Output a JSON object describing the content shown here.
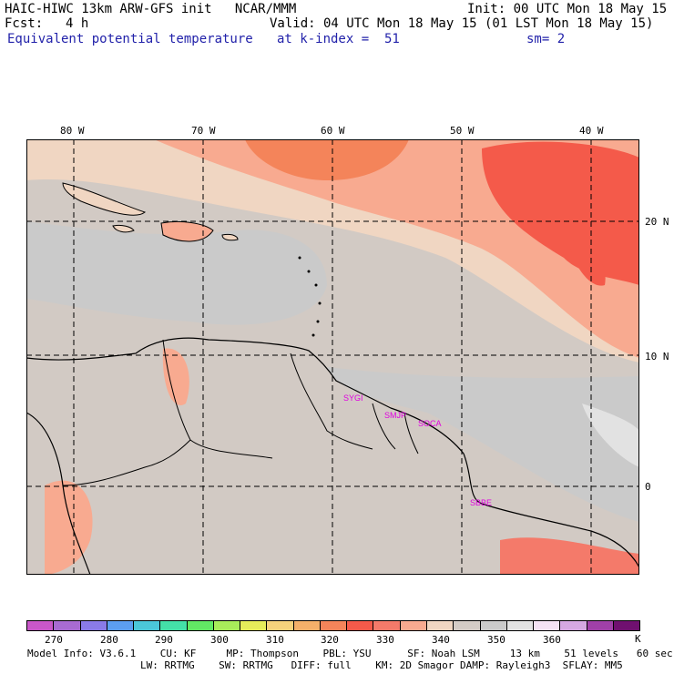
{
  "header": {
    "line1_left": "HAIC-HIWC 13km ARW-GFS init   NCAR/MMM",
    "line1_right": "Init: 00 UTC Mon 18 May 15",
    "fcst_label": "Fcst:",
    "fcst_value": "4 h",
    "valid": "Valid: 04 UTC Mon 18 May 15 (01 LST Mon 18 May 15)",
    "field": "Equivalent potential temperature",
    "level": "at k-index =  51",
    "smooth": "sm= 2"
  },
  "map": {
    "lon_labels": [
      "80 W",
      "70 W",
      "60 W",
      "50 W",
      "40 W"
    ],
    "lat_labels": [
      "20 N",
      "10 N",
      "0"
    ],
    "station_labels": [
      "SYGI",
      "SMJP",
      "SOCA",
      "SBBE"
    ]
  },
  "colorbar": {
    "colors": [
      "#c957c9",
      "#a86bd2",
      "#8a7be8",
      "#5c9ef0",
      "#4bc7d9",
      "#44e0a8",
      "#62e864",
      "#a8ec5a",
      "#e6ec5a",
      "#f6d27c",
      "#f4b06a",
      "#f4845a",
      "#f45a4a",
      "#f47a6a",
      "#f8aa90",
      "#f0d6c2",
      "#d4ccc6",
      "#cacaca",
      "#e2e2e2",
      "#f4e2f4",
      "#d6a8e2",
      "#a040a8",
      "#701070"
    ],
    "tick_labels": [
      "270",
      "280",
      "290",
      "300",
      "310",
      "320",
      "330",
      "340",
      "350",
      "360",
      "K"
    ]
  },
  "footer": {
    "line1": "Model Info: V3.6.1    CU: KF     MP: Thompson    PBL: YSU      SF: Noah LSM     13 km    51 levels   60 sec",
    "line2": "LW: RRTMG    SW: RRTMG   DIFF: full    KM: 2D Smagor DAMP: Rayleigh3  SFLAY: MM5"
  }
}
